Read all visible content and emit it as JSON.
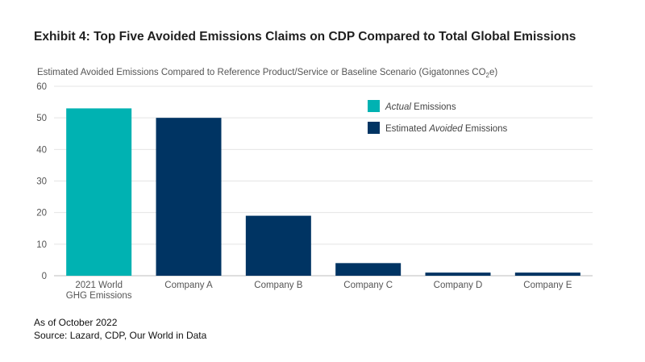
{
  "chart_data": {
    "type": "bar",
    "title": "Exhibit 4: Top Five Avoided Emissions Claims on CDP Compared to Total Global Emissions",
    "ylabel": "Estimated Avoided Emissions Compared to Reference Product/Service or Baseline Scenario (Gigatonnes CO",
    "ylabel_subscript": "2",
    "ylabel_suffix": "e)",
    "xlabel": "",
    "ylim": [
      0,
      60
    ],
    "yticks": [
      0,
      10,
      20,
      30,
      40,
      50,
      60
    ],
    "grid": true,
    "legend_position": "top-right",
    "categories": [
      [
        "2021 World",
        "GHG Emissions"
      ],
      [
        "Company A"
      ],
      [
        "Company B"
      ],
      [
        "Company C"
      ],
      [
        "Company D"
      ],
      [
        "Company E"
      ]
    ],
    "values": [
      53,
      50,
      19,
      4,
      1,
      1
    ],
    "bar_series": [
      0,
      1,
      1,
      1,
      1,
      1
    ],
    "series": [
      {
        "legend_parts": [
          {
            "text": "Actual",
            "italic": true
          },
          {
            "text": " Emissions",
            "italic": false
          }
        ],
        "color": "#00b2b2"
      },
      {
        "legend_parts": [
          {
            "text": "Estimated ",
            "italic": false
          },
          {
            "text": "Avoided",
            "italic": true
          },
          {
            "text": " Emissions",
            "italic": false
          }
        ],
        "color": "#003463"
      }
    ]
  },
  "footnotes": {
    "as_of": "As of October 2022",
    "source": "Source: Lazard, CDP, Our World in Data"
  }
}
